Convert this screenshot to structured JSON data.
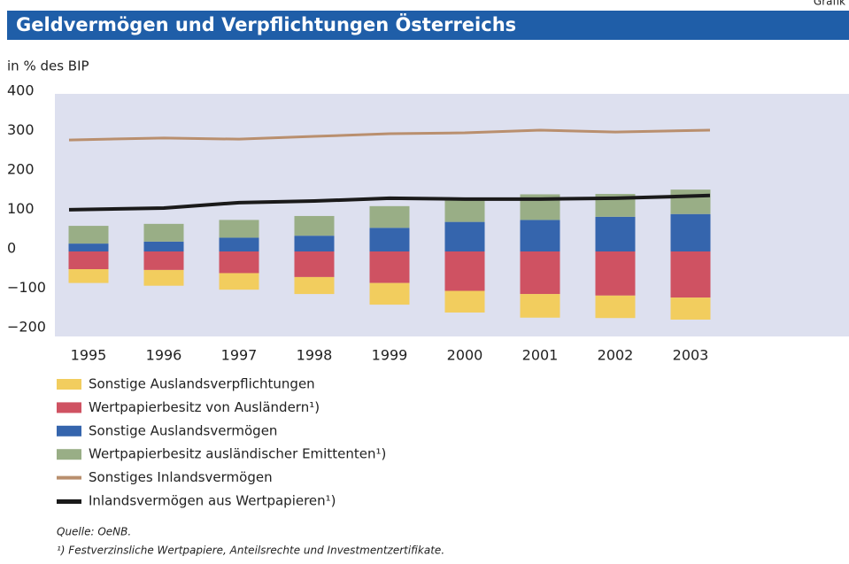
{
  "corner_label": "Grafik",
  "chart_data": {
    "type": "bar",
    "title": "Geldvermögen und Verpflichtungen Österreichs",
    "subtitle": "in % des BIP",
    "categories": [
      "1995",
      "1996",
      "1997",
      "1998",
      "1999",
      "2000",
      "2001",
      "2002",
      "2003"
    ],
    "series": [
      {
        "name": "Sonstige Auslandsverpflichtungen",
        "color": "#f2cd5e",
        "kind": "bar",
        "values": [
          -35,
          -40,
          -42,
          -43,
          -55,
          -55,
          -60,
          -57,
          -56
        ]
      },
      {
        "name": "Wertpapierbesitz von Ausländern¹)",
        "color": "#cf5262",
        "kind": "bar",
        "values": [
          -45,
          -47,
          -55,
          -65,
          -80,
          -100,
          -108,
          -112,
          -117
        ]
      },
      {
        "name": "Sonstige Auslandsvermögen",
        "color": "#3565ad",
        "kind": "bar",
        "values": [
          20,
          25,
          35,
          40,
          60,
          75,
          80,
          88,
          95
        ]
      },
      {
        "name": "Wertpapierbesitz ausländischer Emittenten¹)",
        "color": "#99ae86",
        "kind": "bar",
        "values": [
          45,
          45,
          45,
          50,
          55,
          58,
          65,
          58,
          62
        ]
      },
      {
        "name": "Sonstiges Inlandsvermögen",
        "color": "#b98f6e",
        "kind": "line",
        "values": [
          283,
          288,
          285,
          292,
          299,
          301,
          308,
          303,
          308
        ]
      },
      {
        "name": "Inlandsvermögen aus Wertpapieren¹)",
        "color": "#1a1a1a",
        "kind": "line",
        "values": [
          106,
          110,
          124,
          128,
          135,
          133,
          133,
          135,
          142
        ]
      }
    ],
    "ylim": [
      -200,
      400
    ],
    "yticks": [
      {
        "value": -200,
        "label": "−200"
      },
      {
        "value": -100,
        "label": "−100"
      },
      0,
      100,
      200,
      300,
      400
    ],
    "source": "Quelle: OeNB.",
    "footnote": "¹) Festverzinsliche Wertpapiere, Anteilsrechte und Investmentzertifikate."
  }
}
